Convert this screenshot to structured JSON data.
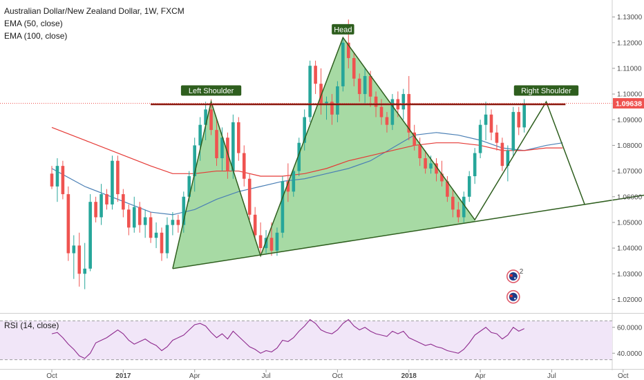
{
  "title": "Australian Dollar/New Zealand Dollar, 1W, FXCM",
  "indicators": [
    "EMA (50, close)",
    "EMA (100, close)"
  ],
  "rsi_label": "RSI (14, close)",
  "price_tag": "1.09638",
  "event_badge_count": "2",
  "colors": {
    "up": "#26a69a",
    "down": "#ef5350",
    "ema50": "#4a7fb5",
    "ema100": "#e53935",
    "pattern_fill": "#8ed08a",
    "pattern_stroke": "#2e5e1e",
    "neckline": "#8b1a10",
    "label_bg": "#2e5e1e",
    "rsi_line": "#8e2a8e",
    "rsi_band": "#f1e6f8"
  },
  "chart_data": [
    {
      "type": "candlestick",
      "title": "Australian Dollar/New Zealand Dollar, 1W, FXCM",
      "ylim": [
        1.015,
        1.135
      ],
      "y_ticks": [
        "1.13000",
        "1.12000",
        "1.11000",
        "1.10000",
        "1.09000",
        "1.08000",
        "1.07000",
        "1.06000",
        "1.05000",
        "1.04000",
        "1.03000",
        "1.02000"
      ],
      "x_ticks": [
        "Oct",
        "2017",
        "Apr",
        "Jul",
        "Oct",
        "2018",
        "Apr",
        "Jul",
        "Oct"
      ],
      "x_tick_weeks": [
        0,
        13,
        26,
        39,
        52,
        65,
        78,
        91,
        104
      ],
      "candles": [
        [
          1.069,
          1.072,
          1.063,
          1.064
        ],
        [
          1.064,
          1.075,
          1.058,
          1.072
        ],
        [
          1.072,
          1.074,
          1.059,
          1.061
        ],
        [
          1.061,
          1.064,
          1.035,
          1.038
        ],
        [
          1.038,
          1.045,
          1.028,
          1.041
        ],
        [
          1.041,
          1.046,
          1.025,
          1.03
        ],
        [
          1.03,
          1.042,
          1.024,
          1.032
        ],
        [
          1.032,
          1.061,
          1.031,
          1.058
        ],
        [
          1.058,
          1.06,
          1.05,
          1.052
        ],
        [
          1.052,
          1.065,
          1.049,
          1.061
        ],
        [
          1.061,
          1.063,
          1.055,
          1.057
        ],
        [
          1.057,
          1.076,
          1.055,
          1.074
        ],
        [
          1.074,
          1.076,
          1.058,
          1.061
        ],
        [
          1.061,
          1.063,
          1.052,
          1.055
        ],
        [
          1.055,
          1.057,
          1.045,
          1.048
        ],
        [
          1.048,
          1.06,
          1.046,
          1.056
        ],
        [
          1.056,
          1.058,
          1.046,
          1.049
        ],
        [
          1.049,
          1.055,
          1.044,
          1.052
        ],
        [
          1.052,
          1.054,
          1.042,
          1.044
        ],
        [
          1.044,
          1.05,
          1.04,
          1.046
        ],
        [
          1.046,
          1.048,
          1.035,
          1.038
        ],
        [
          1.038,
          1.052,
          1.036,
          1.049
        ],
        [
          1.049,
          1.054,
          1.045,
          1.051
        ],
        [
          1.051,
          1.053,
          1.046,
          1.049
        ],
        [
          1.049,
          1.062,
          1.046,
          1.06
        ],
        [
          1.06,
          1.07,
          1.058,
          1.068
        ],
        [
          1.068,
          1.083,
          1.062,
          1.08
        ],
        [
          1.08,
          1.091,
          1.074,
          1.088
        ],
        [
          1.088,
          1.097,
          1.082,
          1.094
        ],
        [
          1.094,
          1.098,
          1.084,
          1.086
        ],
        [
          1.086,
          1.09,
          1.072,
          1.075
        ],
        [
          1.075,
          1.087,
          1.07,
          1.083
        ],
        [
          1.083,
          1.085,
          1.067,
          1.07
        ],
        [
          1.07,
          1.092,
          1.067,
          1.089
        ],
        [
          1.089,
          1.091,
          1.074,
          1.077
        ],
        [
          1.077,
          1.08,
          1.064,
          1.067
        ],
        [
          1.067,
          1.069,
          1.051,
          1.053
        ],
        [
          1.053,
          1.056,
          1.043,
          1.045
        ],
        [
          1.045,
          1.05,
          1.038,
          1.04
        ],
        [
          1.04,
          1.047,
          1.038,
          1.044
        ],
        [
          1.044,
          1.05,
          1.037,
          1.039
        ],
        [
          1.039,
          1.048,
          1.037,
          1.046
        ],
        [
          1.046,
          1.068,
          1.044,
          1.066
        ],
        [
          1.066,
          1.073,
          1.058,
          1.062
        ],
        [
          1.062,
          1.071,
          1.06,
          1.07
        ],
        [
          1.07,
          1.083,
          1.068,
          1.081
        ],
        [
          1.081,
          1.094,
          1.078,
          1.091
        ],
        [
          1.091,
          1.113,
          1.089,
          1.111
        ],
        [
          1.111,
          1.113,
          1.1,
          1.104
        ],
        [
          1.104,
          1.11,
          1.092,
          1.096
        ],
        [
          1.096,
          1.099,
          1.09,
          1.097
        ],
        [
          1.097,
          1.1,
          1.088,
          1.092
        ],
        [
          1.092,
          1.105,
          1.089,
          1.103
        ],
        [
          1.103,
          1.122,
          1.101,
          1.12
        ],
        [
          1.12,
          1.129,
          1.11,
          1.114
        ],
        [
          1.114,
          1.116,
          1.103,
          1.106
        ],
        [
          1.106,
          1.108,
          1.097,
          1.1
        ],
        [
          1.1,
          1.11,
          1.096,
          1.107
        ],
        [
          1.107,
          1.109,
          1.095,
          1.099
        ],
        [
          1.099,
          1.101,
          1.091,
          1.095
        ],
        [
          1.095,
          1.098,
          1.088,
          1.091
        ],
        [
          1.091,
          1.093,
          1.085,
          1.088
        ],
        [
          1.088,
          1.1,
          1.086,
          1.098
        ],
        [
          1.098,
          1.101,
          1.091,
          1.094
        ],
        [
          1.094,
          1.102,
          1.09,
          1.1
        ],
        [
          1.1,
          1.107,
          1.082,
          1.085
        ],
        [
          1.085,
          1.088,
          1.078,
          1.08
        ],
        [
          1.08,
          1.083,
          1.072,
          1.075
        ],
        [
          1.075,
          1.078,
          1.069,
          1.071
        ],
        [
          1.071,
          1.076,
          1.069,
          1.073
        ],
        [
          1.073,
          1.075,
          1.066,
          1.069
        ],
        [
          1.069,
          1.074,
          1.064,
          1.066
        ],
        [
          1.066,
          1.068,
          1.058,
          1.06
        ],
        [
          1.06,
          1.063,
          1.052,
          1.055
        ],
        [
          1.055,
          1.058,
          1.05,
          1.052
        ],
        [
          1.052,
          1.062,
          1.05,
          1.06
        ],
        [
          1.06,
          1.07,
          1.058,
          1.068
        ],
        [
          1.068,
          1.079,
          1.065,
          1.077
        ],
        [
          1.077,
          1.09,
          1.075,
          1.088
        ],
        [
          1.088,
          1.097,
          1.082,
          1.092
        ],
        [
          1.092,
          1.094,
          1.082,
          1.085
        ],
        [
          1.085,
          1.088,
          1.078,
          1.081
        ],
        [
          1.081,
          1.083,
          1.07,
          1.072
        ],
        [
          1.072,
          1.08,
          1.066,
          1.078
        ],
        [
          1.078,
          1.095,
          1.076,
          1.093
        ],
        [
          1.093,
          1.095,
          1.084,
          1.087
        ],
        [
          1.087,
          1.098,
          1.085,
          1.096
        ]
      ],
      "ema50": [
        [
          0,
          1.071
        ],
        [
          6,
          1.064
        ],
        [
          12,
          1.059
        ],
        [
          18,
          1.054
        ],
        [
          22,
          1.053
        ],
        [
          26,
          1.055
        ],
        [
          30,
          1.059
        ],
        [
          34,
          1.062
        ],
        [
          38,
          1.064
        ],
        [
          42,
          1.066
        ],
        [
          46,
          1.067
        ],
        [
          50,
          1.069
        ],
        [
          54,
          1.071
        ],
        [
          58,
          1.074
        ],
        [
          62,
          1.079
        ],
        [
          66,
          1.084
        ],
        [
          70,
          1.085
        ],
        [
          74,
          1.084
        ],
        [
          78,
          1.082
        ],
        [
          82,
          1.079
        ],
        [
          86,
          1.078
        ],
        [
          90,
          1.08
        ],
        [
          93,
          1.081
        ]
      ],
      "ema100": [
        [
          0,
          1.087
        ],
        [
          6,
          1.082
        ],
        [
          12,
          1.077
        ],
        [
          18,
          1.072
        ],
        [
          22,
          1.069
        ],
        [
          26,
          1.069
        ],
        [
          30,
          1.07
        ],
        [
          34,
          1.07
        ],
        [
          38,
          1.068
        ],
        [
          42,
          1.068
        ],
        [
          46,
          1.069
        ],
        [
          50,
          1.071
        ],
        [
          54,
          1.074
        ],
        [
          58,
          1.076
        ],
        [
          62,
          1.078
        ],
        [
          66,
          1.08
        ],
        [
          70,
          1.081
        ],
        [
          74,
          1.081
        ],
        [
          78,
          1.08
        ],
        [
          82,
          1.078
        ],
        [
          86,
          1.078
        ],
        [
          90,
          1.079
        ],
        [
          93,
          1.079
        ]
      ],
      "pattern": {
        "name": "Head and Shoulders",
        "labels": [
          "Left Shoulder",
          "Head",
          "Right Shoulder"
        ],
        "points": [
          [
            22,
            1.032
          ],
          [
            29,
            1.097
          ],
          [
            38,
            1.037
          ],
          [
            53,
            1.122
          ],
          [
            77,
            1.051
          ],
          [
            90,
            1.097
          ],
          [
            97,
            1.057
          ]
        ],
        "neckline_price": 1.096,
        "trendline": [
          [
            22,
            1.032
          ],
          [
            106,
            1.06
          ]
        ]
      }
    },
    {
      "type": "line",
      "title": "RSI (14, close)",
      "ylim": [
        30,
        70
      ],
      "y_ticks": [
        "60.0000",
        "40.0000"
      ],
      "band": [
        35,
        65
      ],
      "values": [
        55,
        56,
        52,
        47,
        43,
        38,
        36,
        40,
        48,
        50,
        52,
        55,
        58,
        55,
        50,
        47,
        49,
        51,
        48,
        46,
        42,
        45,
        50,
        52,
        54,
        58,
        62,
        63,
        61,
        56,
        52,
        55,
        51,
        57,
        53,
        49,
        45,
        43,
        40,
        42,
        41,
        44,
        50,
        49,
        52,
        57,
        61,
        66,
        63,
        58,
        56,
        55,
        58,
        63,
        66,
        61,
        58,
        60,
        57,
        55,
        54,
        53,
        57,
        55,
        57,
        52,
        50,
        48,
        46,
        47,
        45,
        44,
        42,
        41,
        40,
        43,
        48,
        54,
        57,
        60,
        56,
        55,
        51,
        54,
        60,
        57,
        59
      ]
    }
  ]
}
